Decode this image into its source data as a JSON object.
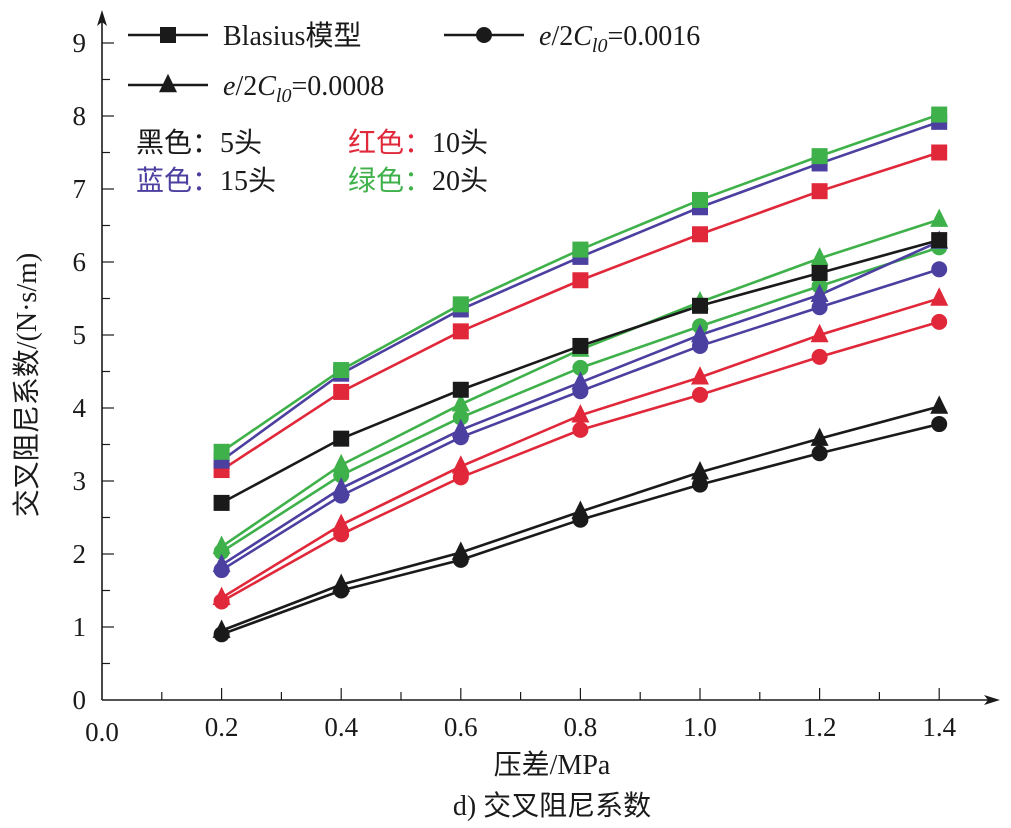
{
  "chart_data": {
    "type": "line",
    "title": "",
    "caption": "d) 交叉阻尼系数",
    "xlabel": "压差/MPa",
    "ylabel": "交叉阻尼系数/(N·s/m)",
    "xlim": [
      0.0,
      1.5
    ],
    "ylim": [
      0,
      9.4
    ],
    "x_ticks": [
      "0.0",
      "0.2",
      "0.4",
      "0.6",
      "0.8",
      "1.0",
      "1.2",
      "1.4"
    ],
    "y_ticks": [
      "0",
      "1",
      "2",
      "3",
      "4",
      "5",
      "6",
      "7",
      "8",
      "9"
    ],
    "grid": false,
    "x": [
      0.2,
      0.4,
      0.6,
      0.8,
      1.0,
      1.2,
      1.4
    ],
    "legend": {
      "position": "top-left",
      "markers": [
        {
          "marker": "square",
          "label_main": "Blasius模型",
          "label_parts": null
        },
        {
          "marker": "circle",
          "label_parts": {
            "pre": "e",
            "mid": "/2C",
            "sub": "l0",
            "post": "=0.0016"
          }
        },
        {
          "marker": "triangle",
          "label_parts": {
            "pre": "e",
            "mid": "/2C",
            "sub": "l0",
            "post": "=0.0008"
          }
        }
      ],
      "colors": [
        {
          "name": "黑色",
          "sep": "：",
          "value": "5头",
          "color": "#1a1a1a"
        },
        {
          "name": "红色",
          "sep": "：",
          "value": "10头",
          "color": "#e0283a"
        },
        {
          "name": "蓝色",
          "sep": "：",
          "value": "15头",
          "color": "#4b3fa0"
        },
        {
          "name": "绿色",
          "sep": "：",
          "value": "20头",
          "color": "#3fb14a"
        }
      ]
    },
    "series": [
      {
        "name": "Blasius模型 5头",
        "color": "#1a1a1a",
        "marker": "square",
        "values": [
          2.7,
          3.58,
          4.25,
          4.85,
          5.4,
          5.85,
          6.3
        ]
      },
      {
        "name": "Blasius模型 10头",
        "color": "#e0283a",
        "marker": "square",
        "values": [
          3.15,
          4.22,
          5.05,
          5.75,
          6.38,
          6.97,
          7.5
        ]
      },
      {
        "name": "Blasius模型 15头",
        "color": "#4b3fa0",
        "marker": "square",
        "values": [
          3.28,
          4.47,
          5.35,
          6.07,
          6.75,
          7.35,
          7.92
        ]
      },
      {
        "name": "Blasius模型 20头",
        "color": "#3fb14a",
        "marker": "square",
        "values": [
          3.4,
          4.52,
          5.42,
          6.17,
          6.85,
          7.45,
          8.02
        ]
      },
      {
        "name": "e/2Cl0=0.0008 5头",
        "color": "#1a1a1a",
        "marker": "triangle",
        "values": [
          0.95,
          1.58,
          2.02,
          2.58,
          3.12,
          3.58,
          4.02
        ]
      },
      {
        "name": "e/2Cl0=0.0008 10头",
        "color": "#e0283a",
        "marker": "triangle",
        "values": [
          1.4,
          2.4,
          3.2,
          3.9,
          4.42,
          5.0,
          5.5
        ]
      },
      {
        "name": "e/2Cl0=0.0008 15头",
        "color": "#4b3fa0",
        "marker": "triangle",
        "values": [
          1.85,
          2.9,
          3.7,
          4.35,
          5.0,
          5.55,
          6.28
        ]
      },
      {
        "name": "e/2Cl0=0.0008 20头",
        "color": "#3fb14a",
        "marker": "triangle",
        "values": [
          2.1,
          3.22,
          4.05,
          4.8,
          5.45,
          6.05,
          6.58
        ]
      },
      {
        "name": "e/2Cl0=0.0016 5头",
        "color": "#1a1a1a",
        "marker": "circle",
        "values": [
          0.9,
          1.5,
          1.92,
          2.47,
          2.95,
          3.38,
          3.78
        ]
      },
      {
        "name": "e/2Cl0=0.0016 10头",
        "color": "#e0283a",
        "marker": "circle",
        "values": [
          1.35,
          2.27,
          3.05,
          3.7,
          4.18,
          4.7,
          5.18
        ]
      },
      {
        "name": "e/2Cl0=0.0016 15头",
        "color": "#4b3fa0",
        "marker": "circle",
        "values": [
          1.78,
          2.8,
          3.6,
          4.23,
          4.85,
          5.38,
          5.9
        ]
      },
      {
        "name": "e/2Cl0=0.0016 20头",
        "color": "#3fb14a",
        "marker": "circle",
        "values": [
          2.03,
          3.08,
          3.87,
          4.55,
          5.12,
          5.67,
          6.2
        ]
      }
    ]
  }
}
